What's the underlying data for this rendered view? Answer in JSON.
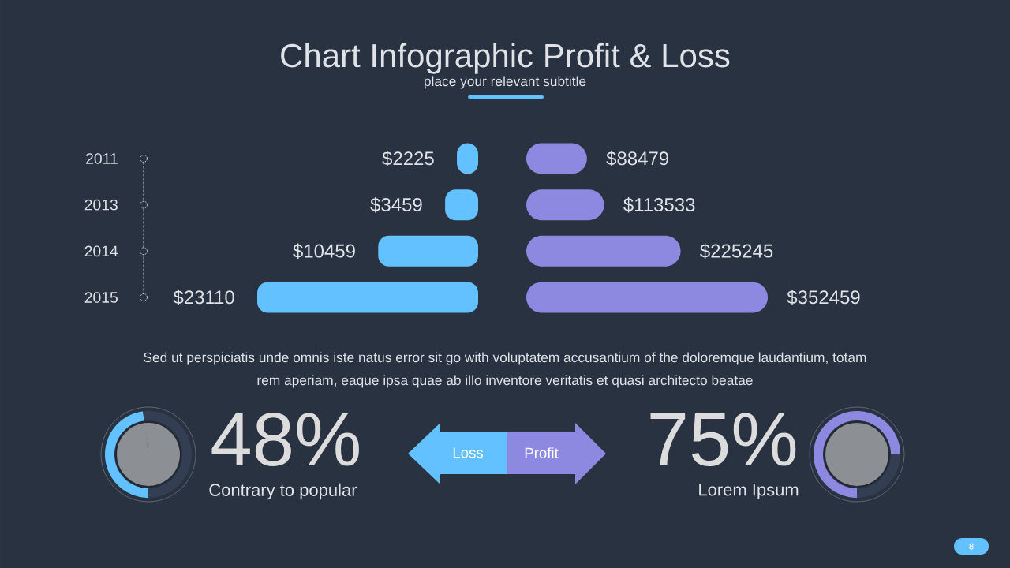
{
  "chart_data": [
    {
      "type": "bar",
      "title": "Chart Infographic Profit & Loss",
      "subtitle": "place your relevant subtitle",
      "orientation": "horizontal",
      "categories": [
        "2011",
        "2013",
        "2014",
        "2015"
      ],
      "series": [
        {
          "name": "Loss",
          "color": "#64c1ff",
          "values": [
            2225,
            3459,
            10459,
            23110
          ],
          "value_labels": [
            "$2225",
            "$3459",
            "$10459",
            "$23110"
          ]
        }
      ],
      "legend": "bottom",
      "annotations": [
        "Sed ut perspiciatis unde omnis iste natus error sit go with voluptatem accusantium of the doloremque laudantium, totam rem aperiam, eaque ipsa quae ab illo inventore veritatis et quasi architecto beatae",
        "8"
      ]
    },
    {
      "type": "bar",
      "orientation": "horizontal",
      "categories": [
        "2011",
        "2013",
        "2014",
        "2015"
      ],
      "series": [
        {
          "name": "Profit",
          "color": "#8e89e0",
          "values": [
            88479,
            113533,
            225245,
            352459
          ],
          "value_labels": [
            "$88479",
            "$113533",
            "$225245",
            "$352459"
          ]
        }
      ],
      "legend": "bottom",
      "tick_labels": false
    },
    {
      "type": "donut",
      "title": "48%",
      "subtitle": "Contrary to popular",
      "categories": [
        null,
        null
      ],
      "values": [
        48,
        52
      ],
      "colors": [
        "#64c1ff",
        "#343e52"
      ]
    },
    {
      "type": "donut",
      "title": "75%",
      "subtitle": "Lorem Ipsum",
      "categories": [
        null,
        null
      ],
      "values": [
        75,
        25
      ],
      "colors": [
        "#8e89e0",
        "#343e52"
      ]
    }
  ]
}
